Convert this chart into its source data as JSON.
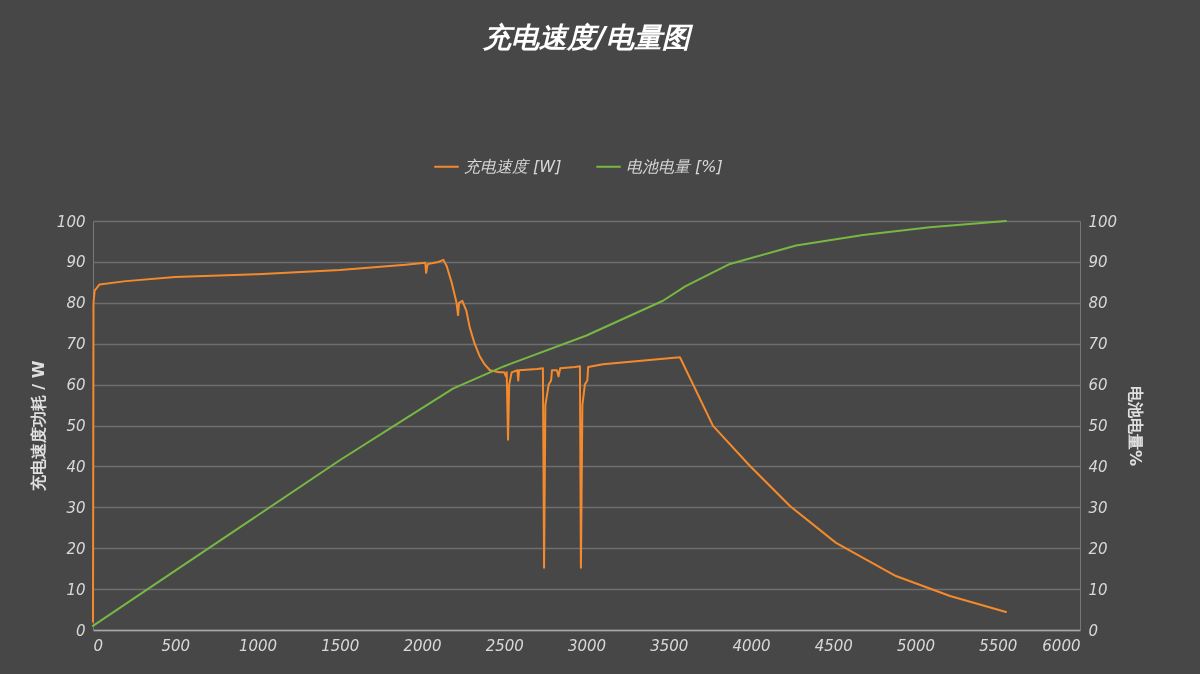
{
  "chart_data": {
    "type": "line",
    "title": "充电速度/电量图",
    "ylabel": "充电速度功耗 / W",
    "y2label": "电池电量%",
    "xlim": [
      0,
      6000
    ],
    "xticks": [
      0,
      500,
      1000,
      1500,
      2000,
      2500,
      3000,
      3500,
      4000,
      4500,
      5000,
      5500,
      6000
    ],
    "ylim": [
      0,
      100
    ],
    "yticks": [
      0,
      10,
      20,
      30,
      40,
      50,
      60,
      70,
      80,
      90,
      100
    ],
    "y2lim": [
      0,
      100
    ],
    "y2ticks": [
      0,
      10,
      20,
      30,
      40,
      50,
      60,
      70,
      80,
      90,
      100
    ],
    "grid": "y",
    "legend": "top",
    "line_style": "solid",
    "marker": "none",
    "series": [
      {
        "name": "充电速度 [W]",
        "color": "#f58a2c",
        "x": [
          0,
          3,
          10,
          40,
          200,
          500,
          1000,
          1500,
          1900,
          2020,
          2025,
          2035,
          2100,
          2130,
          2150,
          2180,
          2210,
          2219,
          2225,
          2245,
          2270,
          2290,
          2320,
          2350,
          2380,
          2413,
          2470,
          2500,
          2510,
          2515,
          2523,
          2530,
          2545,
          2580,
          2585,
          2590,
          2700,
          2735,
          2742,
          2750,
          2770,
          2785,
          2790,
          2820,
          2830,
          2840,
          2930,
          2960,
          2966,
          2975,
          2990,
          3005,
          3010,
          3100,
          3300,
          3568,
          3769,
          3994,
          4237,
          4517,
          4881,
          5210,
          5550
        ],
        "values": [
          2,
          80,
          83,
          84.5,
          85.3,
          86.3,
          87,
          88,
          89.3,
          89.8,
          87.3,
          89.5,
          90,
          90.5,
          89,
          85,
          80,
          77,
          80,
          80.5,
          78,
          74,
          70,
          67,
          65,
          63.5,
          63,
          63,
          62,
          63,
          46.5,
          60,
          63,
          63.5,
          61,
          63.5,
          63.8,
          64,
          15.2,
          55,
          60,
          61,
          63.5,
          63.5,
          62,
          64,
          64.3,
          64.5,
          15.2,
          55,
          60,
          61,
          64.3,
          65,
          65.7,
          66.7,
          49.9,
          40.1,
          30.3,
          21.3,
          13.2,
          8.3,
          4.4
        ]
      },
      {
        "name": "电池电量 [%]",
        "color": "#77b843",
        "axis": "y2",
        "x": [
          0,
          500,
          1000,
          1500,
          1885,
          2188,
          2500,
          3000,
          3465,
          3600,
          3872,
          4274,
          4681,
          5088,
          5550
        ],
        "values": [
          1,
          14.5,
          28,
          41.5,
          51.3,
          59,
          64.5,
          72,
          80.5,
          84,
          89.5,
          94,
          96.6,
          98.5,
          100
        ]
      }
    ]
  }
}
